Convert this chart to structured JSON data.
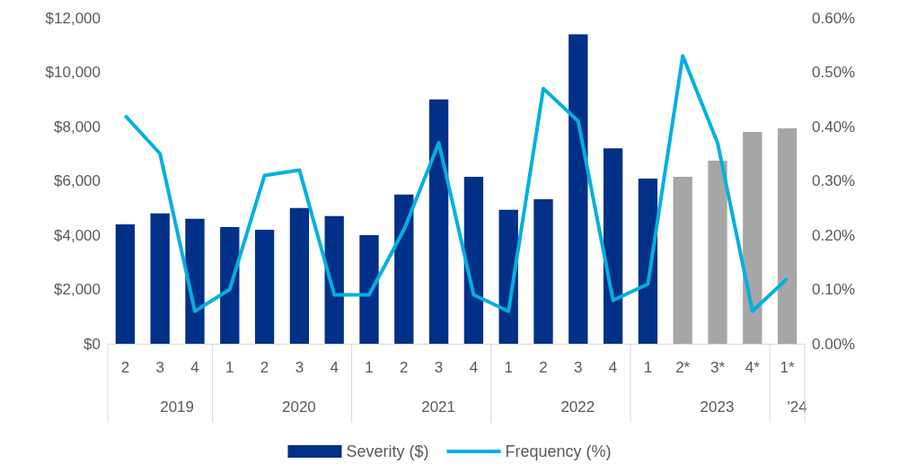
{
  "chart_data": {
    "type": "bar",
    "categories": [
      "2",
      "3",
      "4",
      "1",
      "2",
      "3",
      "4",
      "1",
      "2",
      "3",
      "4",
      "1",
      "2",
      "3",
      "4",
      "1",
      "2*",
      "3*",
      "4*",
      "1*"
    ],
    "series": [
      {
        "name": "Severity ($)",
        "color": "#003087",
        "colors": [
          "#003087",
          "#003087",
          "#003087",
          "#003087",
          "#003087",
          "#003087",
          "#003087",
          "#003087",
          "#003087",
          "#003087",
          "#003087",
          "#003087",
          "#003087",
          "#003087",
          "#003087",
          "#003087",
          "#a6a6a6",
          "#a6a6a6",
          "#a6a6a6",
          "#a6a6a6"
        ],
        "values": [
          4400,
          4800,
          4600,
          4300,
          4200,
          5000,
          4700,
          4000,
          5500,
          9000,
          6150,
          4930,
          5320,
          11400,
          7200,
          6080,
          6150,
          6740,
          7800,
          7930
        ]
      },
      {
        "name": "Frequency (%)",
        "type": "line",
        "axis": "y2",
        "color": "#00b0e0",
        "values": [
          0.42,
          0.35,
          0.06,
          0.1,
          0.31,
          0.32,
          0.09,
          0.09,
          0.21,
          0.37,
          0.09,
          0.06,
          0.47,
          0.41,
          0.08,
          0.11,
          0.53,
          0.37,
          0.06,
          0.12
        ]
      }
    ],
    "ylim": [
      0,
      12000
    ],
    "yticks": [
      {
        "value": 0,
        "label": "$0"
      },
      {
        "value": 2000,
        "label": "$2,000"
      },
      {
        "value": 4000,
        "label": "$4,000"
      },
      {
        "value": 6000,
        "label": "$6,000"
      },
      {
        "value": 8000,
        "label": "$8,000"
      },
      {
        "value": 10000,
        "label": "$10,000"
      },
      {
        "value": 12000,
        "label": "$12,000"
      }
    ],
    "y2lim": [
      0,
      0.6
    ],
    "y2ticks": [
      {
        "value": 0,
        "label": "0.00%"
      },
      {
        "value": 0.1,
        "label": "0.10%"
      },
      {
        "value": 0.2,
        "label": "0.20%"
      },
      {
        "value": 0.3,
        "label": "0.30%"
      },
      {
        "value": 0.4,
        "label": "0.40%"
      },
      {
        "value": 0.5,
        "label": "0.50%"
      },
      {
        "value": 0.6,
        "label": "0.60%"
      }
    ],
    "annotations": [
      "2019",
      "2020",
      "2021",
      "2022",
      "2023",
      "'24"
    ],
    "grid": false,
    "legend": "bottom",
    "marker": "none",
    "line_style": "solid"
  }
}
